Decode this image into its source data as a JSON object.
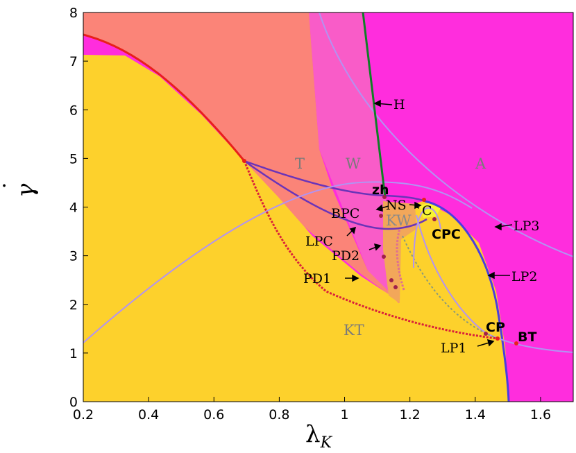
{
  "chart_data": {
    "type": "area",
    "title": "",
    "xlabel": "λK",
    "ylabel": "γ̇",
    "xlim": [
      0.2,
      1.7
    ],
    "ylim": [
      0,
      8
    ],
    "xticks": [
      "0.2",
      "0.4",
      "0.6",
      "0.8",
      "1",
      "1.2",
      "1.4",
      "1.6"
    ],
    "yticks": [
      "0",
      "1",
      "2",
      "3",
      "4",
      "5",
      "6",
      "7",
      "8"
    ],
    "grid": false,
    "legend": "none",
    "colors": {
      "KT": "#fdd12c",
      "T": "#fb8478",
      "W": "#f95cc8",
      "A": "#ff2ddd",
      "KW": "#f2a75a",
      "C": "#f7f532",
      "H": "#0f7f26",
      "upper_boundary": "#e8201b",
      "LPC": "#6b34b8",
      "LP2": "#4a3ee0",
      "LP3": "#b293f2",
      "LP1": "#b293f2",
      "PD": "#d9213a",
      "dashed": "#8a9a7c"
    },
    "region_labels": [
      {
        "text": "T",
        "x": 0.87,
        "y": 4.8
      },
      {
        "text": "W",
        "x": 1.01,
        "y": 4.8
      },
      {
        "text": "A",
        "x": 1.37,
        "y": 4.8
      },
      {
        "text": "KW",
        "x": 1.16,
        "y": 3.7
      },
      {
        "text": "KT",
        "x": 1.02,
        "y": 1.4
      }
    ],
    "curve_labels": [
      {
        "text": "H",
        "x": 1.14,
        "y": 6.2
      },
      {
        "text": "NS",
        "x": 1.18,
        "y": 4.05
      },
      {
        "text": "C",
        "x": 1.25,
        "y": 3.95
      },
      {
        "text": "BPC",
        "x": 1.05,
        "y": 3.8
      },
      {
        "text": "LPC",
        "x": 0.93,
        "y": 3.3
      },
      {
        "text": "PD2",
        "x": 1.09,
        "y": 3.0
      },
      {
        "text": "PD1",
        "x": 0.97,
        "y": 2.5
      },
      {
        "text": "LP3",
        "x": 1.54,
        "y": 3.6
      },
      {
        "text": "LP2",
        "x": 1.49,
        "y": 2.6
      },
      {
        "text": "LP1",
        "x": 1.39,
        "y": 1.1
      }
    ],
    "special_points": [
      {
        "text": "zh",
        "x": 1.12,
        "y": 4.38
      },
      {
        "text": "CPC",
        "x": 1.34,
        "y": 3.55
      },
      {
        "text": "CP",
        "x": 1.46,
        "y": 1.55
      },
      {
        "text": "BT",
        "x": 1.56,
        "y": 1.38
      }
    ]
  }
}
